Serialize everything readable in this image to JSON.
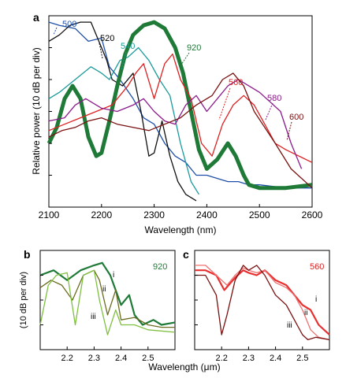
{
  "chart_data": [
    {
      "panel": "a",
      "type": "line",
      "xlabel": "Wavelength (nm)",
      "ylabel": "Relative power (10 dB per div)",
      "xlim": [
        2100,
        2600
      ],
      "ylim": [
        -60,
        0
      ],
      "x_ticks": [
        2100,
        2200,
        2300,
        2400,
        2500,
        2600
      ],
      "series": [
        {
          "name": "500",
          "color": "#1f4fa8",
          "x": [
            2100,
            2120,
            2150,
            2175,
            2200,
            2215,
            2235,
            2260,
            2280,
            2300,
            2320,
            2340,
            2360,
            2380,
            2400,
            2420,
            2440,
            2460,
            2480,
            2500,
            2550,
            2600
          ],
          "y": [
            -2,
            -3,
            -4,
            -8,
            -7,
            -16,
            -20,
            -26,
            -32,
            -34,
            -40,
            -44,
            -46,
            -50,
            -50,
            -51,
            -52,
            -52,
            -53,
            -53,
            -54,
            -54
          ]
        },
        {
          "name": "520",
          "color": "#111111",
          "x": [
            2100,
            2120,
            2140,
            2160,
            2180,
            2200,
            2210,
            2220,
            2240,
            2260,
            2275,
            2290,
            2300,
            2315,
            2330,
            2345,
            2360,
            2380
          ],
          "y": [
            -8,
            -6,
            -3,
            -2,
            -2,
            -10,
            -14,
            -20,
            -22,
            -18,
            -30,
            -44,
            -43,
            -33,
            -44,
            -52,
            -56,
            -58
          ]
        },
        {
          "name": "540",
          "color": "#1a9a9a",
          "x": [
            2100,
            2120,
            2150,
            2180,
            2200,
            2215,
            2235,
            2250,
            2270,
            2290,
            2310,
            2330,
            2350,
            2370,
            2385
          ],
          "y": [
            -26,
            -24,
            -20,
            -16,
            -18,
            -20,
            -14,
            -13,
            -10,
            -14,
            -20,
            -25,
            -40,
            -52,
            -56
          ]
        },
        {
          "name": "920",
          "color": "#1f7a38",
          "x": [
            2100,
            2115,
            2130,
            2145,
            2160,
            2175,
            2190,
            2200,
            2215,
            2230,
            2245,
            2260,
            2280,
            2300,
            2320,
            2340,
            2355,
            2370,
            2385,
            2400,
            2420,
            2440,
            2455,
            2470,
            2480,
            2500,
            2550,
            2600
          ],
          "y": [
            -40,
            -35,
            -26,
            -22,
            -26,
            -38,
            -44,
            -43,
            -33,
            -22,
            -12,
            -6,
            -3,
            -2,
            -4,
            -10,
            -18,
            -30,
            -42,
            -48,
            -45,
            -40,
            -44,
            -50,
            -53,
            -54,
            -54,
            -53
          ]
        },
        {
          "name": "560",
          "color": "#e02020",
          "x": [
            2100,
            2130,
            2160,
            2190,
            2220,
            2250,
            2265,
            2280,
            2300,
            2320,
            2335,
            2350,
            2370,
            2390,
            2410,
            2430,
            2450,
            2470,
            2490,
            2510,
            2530,
            2550,
            2575,
            2600
          ],
          "y": [
            -36,
            -34,
            -32,
            -30,
            -28,
            -22,
            -18,
            -15,
            -26,
            -15,
            -12,
            -20,
            -26,
            -40,
            -44,
            -34,
            -28,
            -25,
            -28,
            -34,
            -40,
            -42,
            -44,
            -46
          ]
        },
        {
          "name": "580",
          "color": "#8b1a8b",
          "x": [
            2100,
            2130,
            2150,
            2170,
            2200,
            2230,
            2260,
            2280,
            2300,
            2320,
            2340,
            2360,
            2380,
            2400,
            2420,
            2440,
            2460,
            2480,
            2500,
            2520,
            2540,
            2560,
            2580
          ],
          "y": [
            -33,
            -32,
            -28,
            -26,
            -29,
            -30,
            -28,
            -26,
            -30,
            -33,
            -34,
            -28,
            -25,
            -30,
            -26,
            -22,
            -20,
            -22,
            -24,
            -27,
            -30,
            -40,
            -48
          ]
        },
        {
          "name": "600",
          "color": "#7a1010",
          "x": [
            2100,
            2125,
            2150,
            2175,
            2200,
            2230,
            2260,
            2290,
            2320,
            2350,
            2380,
            2410,
            2430,
            2450,
            2470,
            2490,
            2510,
            2530,
            2560,
            2600
          ],
          "y": [
            -38,
            -36,
            -35,
            -33,
            -32,
            -34,
            -35,
            -36,
            -34,
            -32,
            -28,
            -25,
            -20,
            -18,
            -22,
            -30,
            -35,
            -40,
            -48,
            -54
          ]
        }
      ],
      "annotations": [
        "500",
        "520",
        "540",
        "920",
        "560",
        "580",
        "600"
      ]
    },
    {
      "panel": "b",
      "type": "line",
      "xlabel": "",
      "ylabel": "(10 dB per div)",
      "xlim": [
        2.1,
        2.6
      ],
      "ylim": [
        -40,
        0
      ],
      "x_ticks": [
        2.2,
        2.3,
        2.4,
        2.5
      ],
      "tag": "920",
      "series": [
        {
          "name": "i",
          "color": "#1f7a38",
          "x": [
            2.1,
            2.15,
            2.2,
            2.25,
            2.3,
            2.33,
            2.36,
            2.4,
            2.43,
            2.45,
            2.48,
            2.52,
            2.55,
            2.6
          ],
          "y": [
            -10,
            -8,
            -12,
            -8,
            -6,
            -5,
            -10,
            -22,
            -18,
            -26,
            -30,
            -28,
            -30,
            -29
          ]
        },
        {
          "name": "ii",
          "color": "#6b6b1f",
          "x": [
            2.1,
            2.14,
            2.18,
            2.22,
            2.26,
            2.3,
            2.32,
            2.35,
            2.38,
            2.4,
            2.45,
            2.5,
            2.55,
            2.6
          ],
          "y": [
            -15,
            -12,
            -14,
            -20,
            -10,
            -8,
            -12,
            -26,
            -16,
            -28,
            -27,
            -30,
            -31,
            -31
          ]
        },
        {
          "name": "iii",
          "color": "#7fbf3f",
          "x": [
            2.1,
            2.13,
            2.16,
            2.2,
            2.23,
            2.26,
            2.3,
            2.32,
            2.35,
            2.38,
            2.4,
            2.45,
            2.5,
            2.6
          ],
          "y": [
            -30,
            -14,
            -10,
            -9,
            -30,
            -10,
            -8,
            -20,
            -34,
            -24,
            -30,
            -30,
            -32,
            -33
          ]
        }
      ]
    },
    {
      "panel": "c",
      "type": "line",
      "xlabel": "Wavelength (μm)",
      "ylabel": "",
      "xlim": [
        2.1,
        2.6
      ],
      "ylim": [
        -40,
        0
      ],
      "x_ticks": [
        2.2,
        2.3,
        2.4,
        2.5
      ],
      "tag": "560",
      "series": [
        {
          "name": "i",
          "color": "#e83030",
          "x": [
            2.1,
            2.14,
            2.18,
            2.21,
            2.25,
            2.28,
            2.3,
            2.33,
            2.36,
            2.4,
            2.44,
            2.47,
            2.5,
            2.53,
            2.56,
            2.6
          ],
          "y": [
            -8,
            -8,
            -10,
            -16,
            -11,
            -8,
            -9,
            -10,
            -8,
            -12,
            -14,
            -18,
            -22,
            -24,
            -30,
            -34
          ]
        },
        {
          "name": "ii",
          "color": "#f07070",
          "x": [
            2.1,
            2.14,
            2.18,
            2.22,
            2.25,
            2.28,
            2.3,
            2.33,
            2.36,
            2.4,
            2.44,
            2.47,
            2.5,
            2.53,
            2.56,
            2.6
          ],
          "y": [
            -6,
            -6,
            -10,
            -14,
            -10,
            -7,
            -8,
            -9,
            -8,
            -13,
            -15,
            -18,
            -24,
            -32,
            -35,
            -36
          ]
        },
        {
          "name": "iii",
          "color": "#7a1010",
          "x": [
            2.1,
            2.14,
            2.18,
            2.2,
            2.22,
            2.25,
            2.28,
            2.3,
            2.33,
            2.36,
            2.4,
            2.44,
            2.47,
            2.5,
            2.52,
            2.55,
            2.6
          ],
          "y": [
            -10,
            -10,
            -18,
            -34,
            -26,
            -12,
            -6,
            -8,
            -6,
            -10,
            -18,
            -22,
            -28,
            -34,
            -36,
            -35,
            -36
          ]
        }
      ]
    }
  ]
}
